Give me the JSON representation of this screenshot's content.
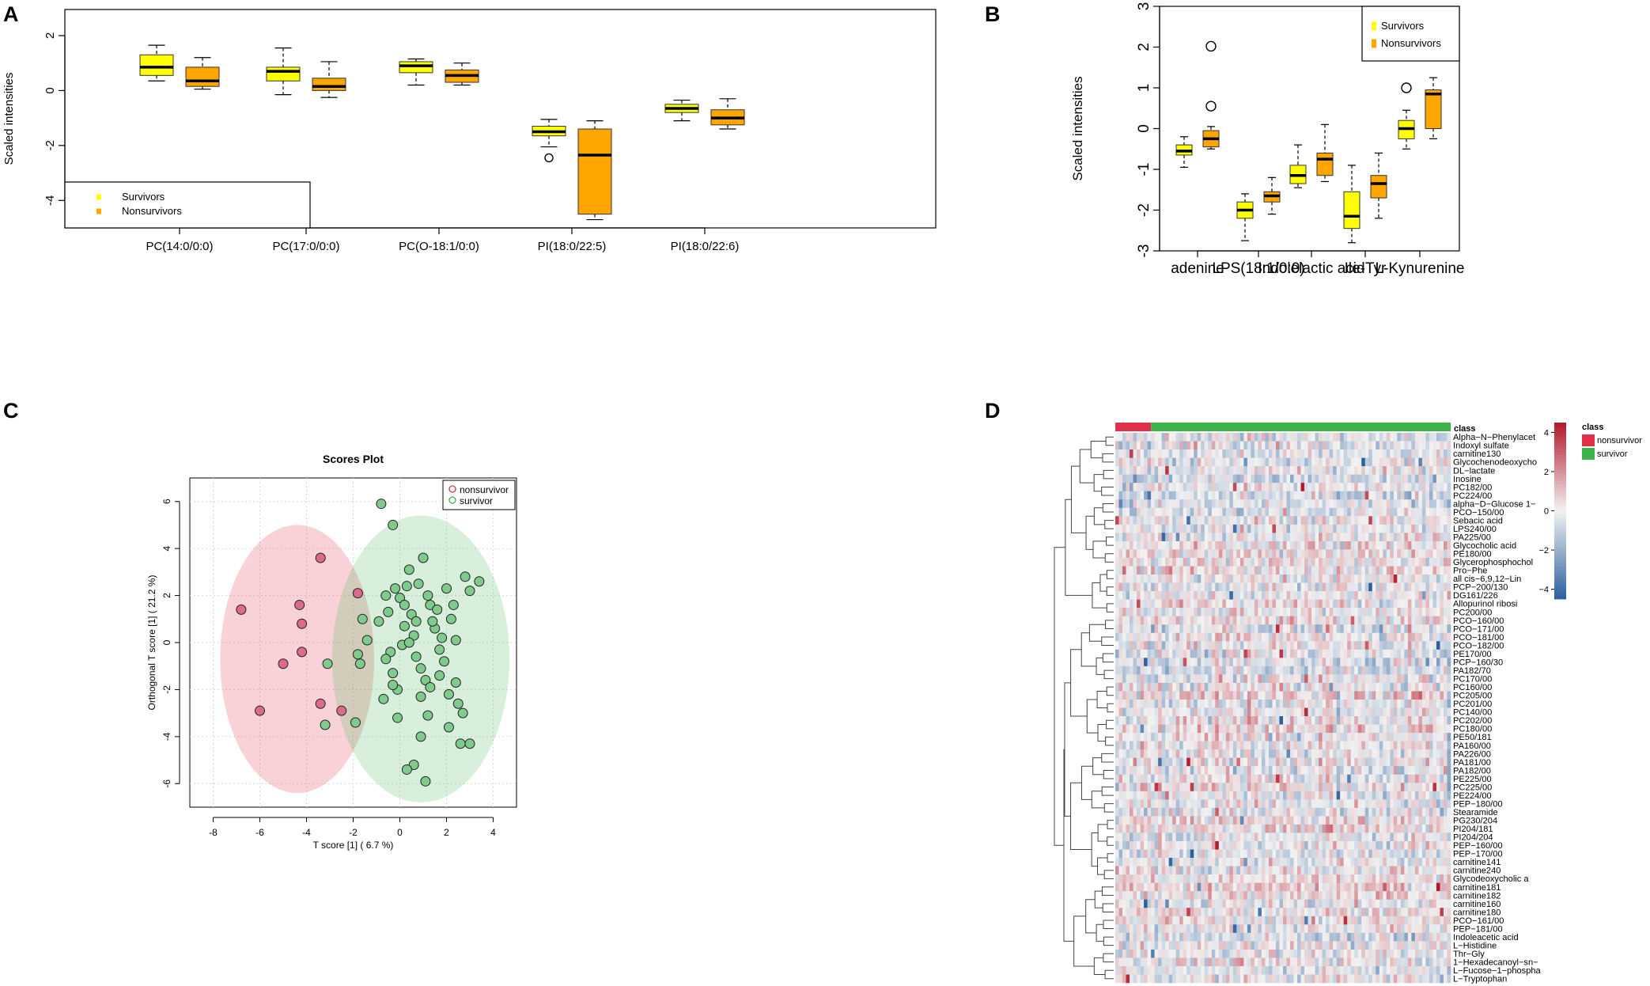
{
  "colors": {
    "survivors_yellow": "#ffff00",
    "nonsurvivors_orange": "#ffa500",
    "nonsurvivor_red": "#e0304a",
    "survivor_green": "#3cb44b",
    "heat_low": "#2b5f9e",
    "heat_mid": "#f2f2f2",
    "heat_high": "#b2182b"
  },
  "chart_data": [
    {
      "panel": "A",
      "type": "box",
      "title": "",
      "ylabel": "Scaled intensities",
      "ylim": [
        -5,
        3
      ],
      "yticks": [
        "-4",
        "-2",
        "0",
        "2"
      ],
      "categories": [
        "PC(14:0/0:0)",
        "PC(17:0/0:0)",
        "PC(O-18:1/0:0)",
        "PI(18:0/22:5)",
        "PI(18:0/22:6)"
      ],
      "legend": [
        "Survivors",
        "Nonsurvivors"
      ],
      "legend_position": "bottom-left",
      "series": [
        {
          "name": "Survivors",
          "boxes": [
            {
              "min": 0.35,
              "q1": 0.55,
              "median": 0.85,
              "q3": 1.3,
              "max": 1.65,
              "outliers": []
            },
            {
              "min": -0.15,
              "q1": 0.35,
              "median": 0.7,
              "q3": 0.85,
              "max": 1.55,
              "outliers": []
            },
            {
              "min": 0.2,
              "q1": 0.65,
              "median": 0.9,
              "q3": 1.05,
              "max": 1.15,
              "outliers": []
            },
            {
              "min": -2.05,
              "q1": -1.65,
              "median": -1.5,
              "q3": -1.3,
              "max": -1.05,
              "outliers": [
                -2.45
              ]
            },
            {
              "min": -1.1,
              "q1": -0.8,
              "median": -0.65,
              "q3": -0.5,
              "max": -0.35,
              "outliers": []
            }
          ]
        },
        {
          "name": "Nonsurvivors",
          "boxes": [
            {
              "min": 0.05,
              "q1": 0.15,
              "median": 0.35,
              "q3": 0.85,
              "max": 1.2,
              "outliers": []
            },
            {
              "min": -0.25,
              "q1": 0.0,
              "median": 0.15,
              "q3": 0.45,
              "max": 1.05,
              "outliers": []
            },
            {
              "min": 0.2,
              "q1": 0.3,
              "median": 0.55,
              "q3": 0.75,
              "max": 1.0,
              "outliers": []
            },
            {
              "min": -4.7,
              "q1": -4.5,
              "median": -2.35,
              "q3": -1.4,
              "max": -1.1,
              "outliers": []
            },
            {
              "min": -1.4,
              "q1": -1.25,
              "median": -1.0,
              "q3": -0.7,
              "max": -0.3,
              "outliers": []
            }
          ]
        }
      ]
    },
    {
      "panel": "B",
      "type": "box",
      "title": "",
      "ylabel": "Scaled intensities",
      "ylim": [
        -3,
        3
      ],
      "yticks": [
        "-3",
        "-2",
        "-1",
        "0",
        "1",
        "2",
        "3"
      ],
      "categories": [
        "adenine",
        "LPS(18:1/0:0)",
        "Indolelactic acid",
        "Ile-Tyr",
        "L-Kynurenine"
      ],
      "legend": [
        "Survivors",
        "Nonsurvivors"
      ],
      "legend_position": "top-right",
      "series": [
        {
          "name": "Survivors",
          "boxes": [
            {
              "min": -0.95,
              "q1": -0.65,
              "median": -0.55,
              "q3": -0.4,
              "max": -0.2,
              "outliers": []
            },
            {
              "min": -2.75,
              "q1": -2.2,
              "median": -2.0,
              "q3": -1.8,
              "max": -1.6,
              "outliers": []
            },
            {
              "min": -1.45,
              "q1": -1.35,
              "median": -1.15,
              "q3": -0.9,
              "max": -0.4,
              "outliers": []
            },
            {
              "min": -2.8,
              "q1": -2.45,
              "median": -2.15,
              "q3": -1.55,
              "max": -0.9,
              "outliers": []
            },
            {
              "min": -0.5,
              "q1": -0.25,
              "median": 0.0,
              "q3": 0.2,
              "max": 0.45,
              "outliers": [
                1.0
              ]
            }
          ]
        },
        {
          "name": "Nonsurvivors",
          "boxes": [
            {
              "min": -0.5,
              "q1": -0.45,
              "median": -0.25,
              "q3": -0.05,
              "max": 0.05,
              "outliers": [
                0.55,
                2.02
              ]
            },
            {
              "min": -2.1,
              "q1": -1.8,
              "median": -1.65,
              "q3": -1.55,
              "max": -1.2,
              "outliers": []
            },
            {
              "min": -1.3,
              "q1": -1.15,
              "median": -0.75,
              "q3": -0.6,
              "max": 0.1,
              "outliers": []
            },
            {
              "min": -2.2,
              "q1": -1.7,
              "median": -1.35,
              "q3": -1.15,
              "max": -0.6,
              "outliers": []
            },
            {
              "min": -0.25,
              "q1": 0.0,
              "median": 0.85,
              "q3": 0.95,
              "max": 1.25,
              "outliers": []
            }
          ]
        }
      ]
    },
    {
      "panel": "C",
      "type": "scatter",
      "title": "Scores Plot",
      "xlabel": "T score [1] ( 6.7 %)",
      "ylabel": "Orthogonal T score [1] ( 21.2 %)",
      "xlim": [
        -9,
        5
      ],
      "ylim": [
        -7,
        7
      ],
      "xticks": [
        "-8",
        "-6",
        "-4",
        "-2",
        "0",
        "2",
        "4"
      ],
      "yticks": [
        "-6",
        "-4",
        "-2",
        "0",
        "2",
        "4",
        "6"
      ],
      "legend": [
        "nonsurvivor",
        "survivor"
      ],
      "legend_position": "top-right",
      "ellipses": [
        {
          "group": "nonsurvivor",
          "cx": -4.4,
          "cy": -0.7,
          "rx": 3.3,
          "ry": 5.7
        },
        {
          "group": "survivor",
          "cx": 0.9,
          "cy": -0.7,
          "rx": 3.8,
          "ry": 6.1
        }
      ],
      "series": [
        {
          "name": "nonsurvivor",
          "points": [
            [
              -6.8,
              1.4
            ],
            [
              -6.0,
              -2.9
            ],
            [
              -5.0,
              -0.9
            ],
            [
              -4.3,
              1.6
            ],
            [
              -4.2,
              0.8
            ],
            [
              -4.2,
              -0.4
            ],
            [
              -3.4,
              3.6
            ],
            [
              -3.4,
              -2.6
            ],
            [
              -2.5,
              -2.9
            ],
            [
              -1.8,
              2.1
            ]
          ]
        },
        {
          "name": "survivor",
          "points": [
            [
              -3.1,
              -0.9
            ],
            [
              -3.2,
              -3.5
            ],
            [
              -1.9,
              -3.4
            ],
            [
              -1.7,
              -0.9
            ],
            [
              -1.8,
              -0.5
            ],
            [
              -1.6,
              1.0
            ],
            [
              -1.4,
              0.1
            ],
            [
              -0.8,
              5.9
            ],
            [
              -0.6,
              2.0
            ],
            [
              -0.5,
              1.3
            ],
            [
              -0.4,
              -0.4
            ],
            [
              -0.3,
              5.0
            ],
            [
              -0.2,
              2.3
            ],
            [
              0.0,
              1.9
            ],
            [
              0.2,
              1.6
            ],
            [
              0.3,
              2.4
            ],
            [
              0.4,
              3.1
            ],
            [
              0.5,
              1.2
            ],
            [
              0.6,
              0.3
            ],
            [
              0.7,
              0.9
            ],
            [
              0.8,
              2.5
            ],
            [
              1.0,
              3.6
            ],
            [
              1.2,
              2.0
            ],
            [
              1.3,
              1.6
            ],
            [
              1.5,
              0.6
            ],
            [
              1.6,
              1.4
            ],
            [
              1.8,
              0.2
            ],
            [
              2.0,
              2.3
            ],
            [
              2.2,
              1.0
            ],
            [
              2.4,
              0.1
            ],
            [
              2.8,
              2.8
            ],
            [
              3.0,
              2.2
            ],
            [
              3.4,
              2.6
            ],
            [
              0.1,
              -0.1
            ],
            [
              0.4,
              0.0
            ],
            [
              0.7,
              -0.6
            ],
            [
              0.9,
              -1.1
            ],
            [
              1.1,
              -1.6
            ],
            [
              1.3,
              -1.9
            ],
            [
              1.7,
              -1.4
            ],
            [
              1.9,
              -0.8
            ],
            [
              2.1,
              -2.2
            ],
            [
              2.4,
              -1.7
            ],
            [
              2.5,
              -2.6
            ],
            [
              2.7,
              -3.0
            ],
            [
              2.6,
              -4.3
            ],
            [
              3.0,
              -4.3
            ],
            [
              0.9,
              -4.0
            ],
            [
              0.6,
              -5.2
            ],
            [
              0.3,
              -5.4
            ],
            [
              1.1,
              -5.9
            ],
            [
              -0.7,
              -2.4
            ],
            [
              -0.3,
              -1.3
            ],
            [
              -0.1,
              -2.0
            ],
            [
              -0.6,
              -0.7
            ],
            [
              -0.1,
              -3.2
            ],
            [
              1.2,
              -3.1
            ],
            [
              0.9,
              -2.3
            ],
            [
              1.4,
              0.9
            ],
            [
              2.1,
              -3.6
            ],
            [
              -0.3,
              -1.8
            ],
            [
              0.2,
              0.7
            ],
            [
              -0.9,
              0.9
            ],
            [
              1.7,
              -0.3
            ],
            [
              2.3,
              1.6
            ]
          ]
        }
      ]
    },
    {
      "panel": "D",
      "type": "heatmap",
      "title": "",
      "rows": [
        "Alpha−N−Phenylacet",
        "Indoxyl sulfate",
        "carnitine130",
        "Glycochenodeoxycho",
        "DL−lactate",
        "Inosine",
        "PC182/00",
        "PC224/00",
        "alpha−D−Glucose 1−",
        "PCO−150/00",
        "Sebacic acid",
        "LPS240/00",
        "PA225/00",
        "Glycocholic acid",
        "PE180/00",
        "Glycerophosphochol",
        "Pro−Phe",
        "all cis−6,9,12−Lin",
        "PCP−200/130",
        "DG161/226",
        "Allopurinol ribosi",
        "PC200/00",
        "PCO−160/00",
        "PCO−171/00",
        "PCO−181/00",
        "PCO−182/00",
        "PE170/00",
        "PCP−160/30",
        "PA182/70",
        "PC170/00",
        "PC160/00",
        "PC205/00",
        "PC201/00",
        "PC140/00",
        "PC202/00",
        "PC180/00",
        "PE50/181",
        "PA160/00",
        "PA226/00",
        "PA181/00",
        "PA182/00",
        "PE225/00",
        "PC225/00",
        "PE224/00",
        "PEP−180/00",
        "Stearamide",
        "PG230/204",
        "PI204/181",
        "PI204/204",
        "PEP−160/00",
        "PEP−170/00",
        "carnitine141",
        "carnitine240",
        "Glycodeoxycholic a",
        "carnitine181",
        "carnitine182",
        "carnitine160",
        "carnitine180",
        "PCO−161/00",
        "PEP−181/00",
        "Indoleacetic acid",
        "L−Histidine",
        "Thr−Gly",
        "1−Hexadecanoyl−sn−",
        "L−Fucose−1−phospha",
        "L−Tryptophan"
      ],
      "class_label": "class",
      "classes": [
        {
          "name": "nonsurvivor",
          "n": 10
        },
        {
          "name": "survivor",
          "n": 84
        }
      ],
      "n_samples": 94,
      "scale_ticks": [
        "4",
        "2",
        "0",
        "−2",
        "−4"
      ],
      "scale_range": [
        -4.5,
        4.5
      ],
      "note": "cell values are procedurally generated z-scores; individual cells not readable from the image"
    }
  ],
  "panel_letters": [
    "A",
    "B",
    "C",
    "D"
  ]
}
